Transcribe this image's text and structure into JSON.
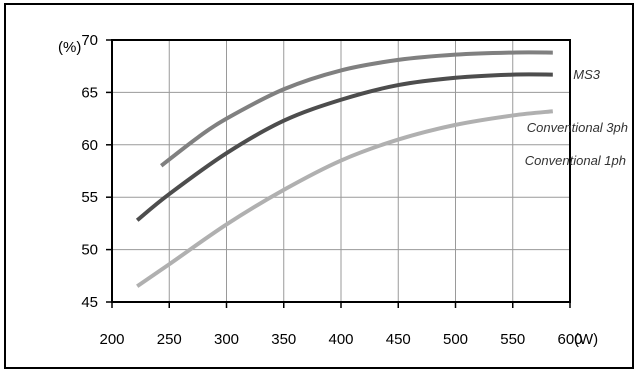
{
  "chart_data": {
    "type": "line",
    "title": "",
    "xlabel": "(W)",
    "ylabel": "(%)",
    "xlim": [
      200,
      600
    ],
    "ylim": [
      45,
      70
    ],
    "x_ticks": [
      200,
      250,
      300,
      350,
      400,
      450,
      500,
      550,
      600
    ],
    "y_ticks": [
      45,
      50,
      55,
      60,
      65,
      70
    ],
    "grid": true,
    "series": [
      {
        "name": "MS3",
        "color": "#808080",
        "x": [
          243,
          275,
          300,
          350,
          400,
          450,
          500,
          550,
          585
        ],
        "y": [
          58,
          60.7,
          62.5,
          65.3,
          67.1,
          68.1,
          68.6,
          68.8,
          68.8
        ]
      },
      {
        "name": "Conventional 3ph",
        "color": "#4d4d4d",
        "x": [
          222,
          250,
          300,
          350,
          400,
          450,
          500,
          550,
          585
        ],
        "y": [
          52.8,
          55.3,
          59.2,
          62.3,
          64.3,
          65.7,
          66.4,
          66.7,
          66.7
        ]
      },
      {
        "name": "Conventional 1ph",
        "color": "#b0b0b0",
        "x": [
          222,
          250,
          300,
          350,
          400,
          450,
          500,
          550,
          585
        ],
        "y": [
          46.5,
          48.6,
          52.4,
          55.7,
          58.5,
          60.5,
          61.9,
          62.8,
          63.2
        ]
      }
    ]
  }
}
